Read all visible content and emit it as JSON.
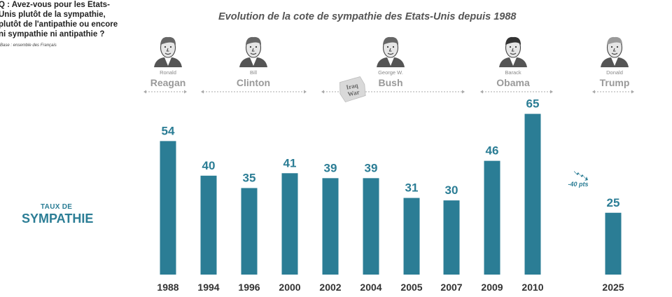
{
  "question": "Q : Avez-vous pour les Etats-Unis plutôt de la sympathie, plutôt de l'antipathie ou encore ni sympathie ni antipathie ?",
  "base": "Base : ensemble des Français",
  "colors": {
    "bar": "#2b7d95",
    "accent": "#2b7d95",
    "text": "#333333",
    "muted": "#999999"
  },
  "presidents": [
    {
      "first": "Ronald",
      "last": "Reagan",
      "icon": "reagan-portrait-icon"
    },
    {
      "first": "Bill",
      "last": "Clinton",
      "icon": "clinton-portrait-icon"
    },
    {
      "first": "George W.",
      "last": "Bush",
      "icon": "bush-portrait-icon"
    },
    {
      "first": "Barack",
      "last": "Obama",
      "icon": "obama-portrait-icon"
    },
    {
      "first": "Donald",
      "last": "Trump",
      "icon": "trump-portrait-icon"
    }
  ],
  "annotations": {
    "iraq": "Iraq War",
    "drop": "-40 pts"
  },
  "chart_data": {
    "type": "bar",
    "title": "Evolution de la cote de sympathie des Etats-Unis depuis 1988",
    "ylabel_line1": "TAUX DE",
    "ylabel_line2": "SYMPATHIE",
    "xlabel": "",
    "categories": [
      "1988",
      "1994",
      "1996",
      "2000",
      "2002",
      "2004",
      "2005",
      "2007",
      "2009",
      "2010",
      "2025"
    ],
    "values": [
      54,
      40,
      35,
      41,
      39,
      39,
      31,
      30,
      46,
      65,
      25
    ],
    "ylim": [
      0,
      70
    ],
    "grid": false,
    "legend": "none"
  }
}
